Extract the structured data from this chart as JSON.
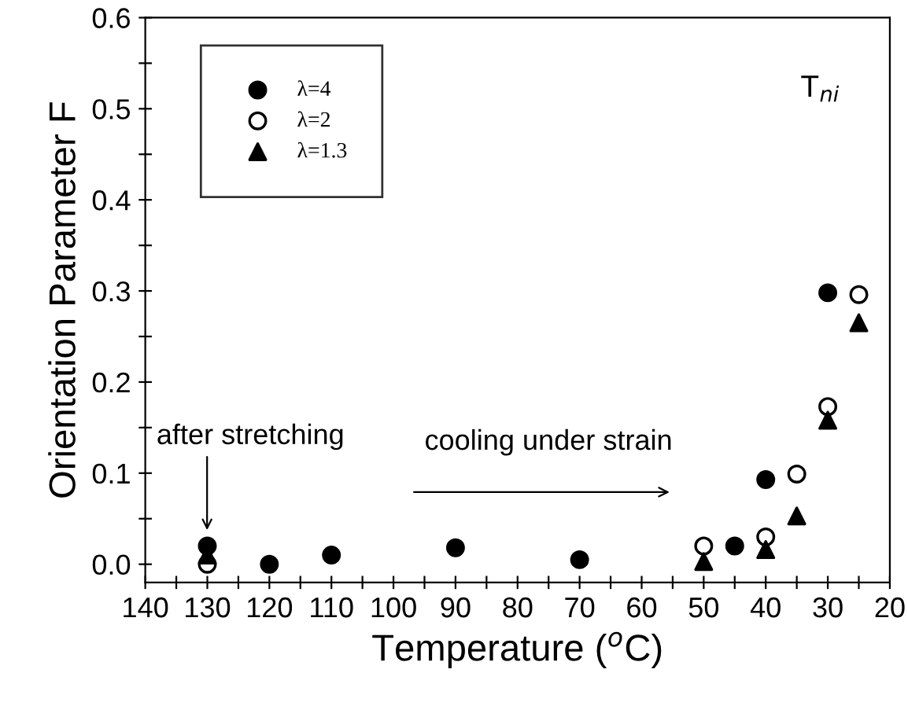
{
  "chart_data": {
    "type": "scatter",
    "xlabel": "Temperature ($^{o}$C)",
    "ylabel": "Orientation Parameter F",
    "series": [
      {
        "name": "λ=4",
        "color": "#000000",
        "marker": "circle",
        "x": [
          130,
          120,
          110,
          90,
          70,
          45,
          40,
          30
        ],
        "values": [
          0.02,
          0.0,
          0.01,
          0.018,
          0.005,
          0.02,
          0.093,
          0.298
        ]
      },
      {
        "name": "λ=2",
        "color": "#ffffff",
        "marker": "circle",
        "x": [
          130,
          50,
          40,
          35,
          30,
          25
        ],
        "values": [
          0.0,
          0.02,
          0.03,
          0.099,
          0.173,
          0.296
        ]
      },
      {
        "name": "λ=1.3",
        "color": "#000000",
        "marker": "triangle",
        "x": [
          130,
          50,
          40,
          35,
          30,
          25
        ],
        "values": [
          0.01,
          0.003,
          0.016,
          0.053,
          0.158,
          0.265
        ]
      }
    ],
    "xlim": [
      140,
      20
    ],
    "ylim": [
      -0.02,
      0.6
    ],
    "xticks": [
      140,
      {
        "value": 135,
        "label": null
      },
      130,
      {
        "value": 125,
        "label": null
      },
      120,
      {
        "value": 115,
        "label": null
      },
      110,
      {
        "value": 105,
        "label": null
      },
      100,
      {
        "value": 95,
        "label": null
      },
      90,
      {
        "value": 85,
        "label": null
      },
      80,
      {
        "value": 75,
        "label": null
      },
      70,
      {
        "value": 65,
        "label": null
      },
      60,
      {
        "value": 55,
        "label": null
      },
      50,
      {
        "value": 45,
        "label": null
      },
      40,
      {
        "value": 35,
        "label": null
      },
      30,
      {
        "value": 25,
        "label": null
      },
      20
    ],
    "yticks": [
      {
        "value": 0.0,
        "label": "0.0"
      },
      {
        "value": 0.05,
        "label": null
      },
      0.1,
      {
        "value": 0.15,
        "label": null
      },
      0.2,
      {
        "value": 0.25,
        "label": null
      },
      0.3,
      {
        "value": 0.35,
        "label": null
      },
      0.4,
      {
        "value": 0.45,
        "label": null
      },
      0.5,
      {
        "value": 0.55,
        "label": null
      },
      0.6
    ],
    "annotations": [
      "after stretching",
      "cooling under strain",
      "T$_{ni}$"
    ],
    "legend": "top left",
    "grid": false
  }
}
